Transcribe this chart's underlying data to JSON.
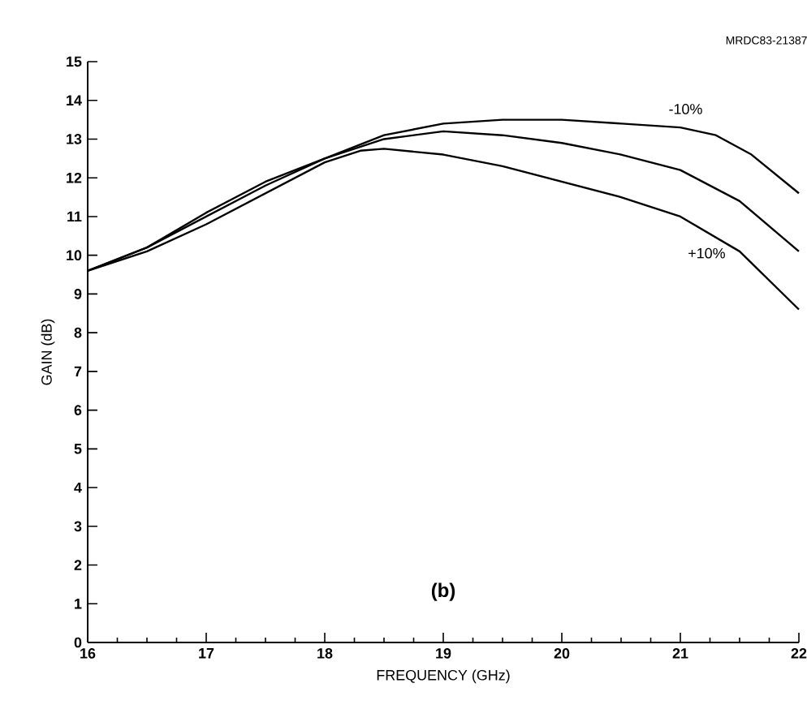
{
  "chart_data": {
    "type": "line",
    "xlabel": "FREQUENCY (GHz)",
    "ylabel": "GAIN (dB)",
    "annotations": [
      "(b)",
      "MRDC83-21387"
    ],
    "xlim": [
      16,
      22
    ],
    "ylim": [
      0,
      15
    ],
    "xticks": [
      16,
      17,
      18,
      19,
      20,
      21,
      22
    ],
    "yticks": [
      0,
      1,
      2,
      3,
      4,
      5,
      6,
      7,
      8,
      9,
      10,
      11,
      12,
      13,
      14,
      15
    ],
    "grid": false,
    "legend": false,
    "marker": "none",
    "line_style": "solid",
    "series": [
      {
        "name": "-10%",
        "color": "#000000",
        "x": [
          16,
          16.5,
          17,
          17.5,
          18,
          18.5,
          19,
          19.5,
          20,
          20.5,
          21,
          21.3,
          21.6,
          22
        ],
        "values": [
          9.6,
          10.2,
          11.0,
          11.8,
          12.5,
          13.1,
          13.4,
          13.5,
          13.5,
          13.4,
          13.3,
          13.1,
          12.6,
          11.6
        ]
      },
      {
        "color": "#000000",
        "x": [
          16,
          16.5,
          17,
          17.5,
          18,
          18.5,
          19,
          19.5,
          20,
          20.5,
          21,
          21.5,
          22
        ],
        "values": [
          9.6,
          10.2,
          11.1,
          11.9,
          12.5,
          13.0,
          13.2,
          13.1,
          12.9,
          12.6,
          12.2,
          11.4,
          10.1
        ]
      },
      {
        "name": "+10%",
        "color": "#000000",
        "x": [
          16,
          16.5,
          17,
          17.5,
          18,
          18.3,
          18.5,
          19,
          19.5,
          20,
          20.5,
          21,
          21.5,
          22
        ],
        "values": [
          9.6,
          10.1,
          10.8,
          11.6,
          12.4,
          12.7,
          12.75,
          12.6,
          12.3,
          11.9,
          11.5,
          11.0,
          10.1,
          8.6
        ]
      }
    ]
  }
}
